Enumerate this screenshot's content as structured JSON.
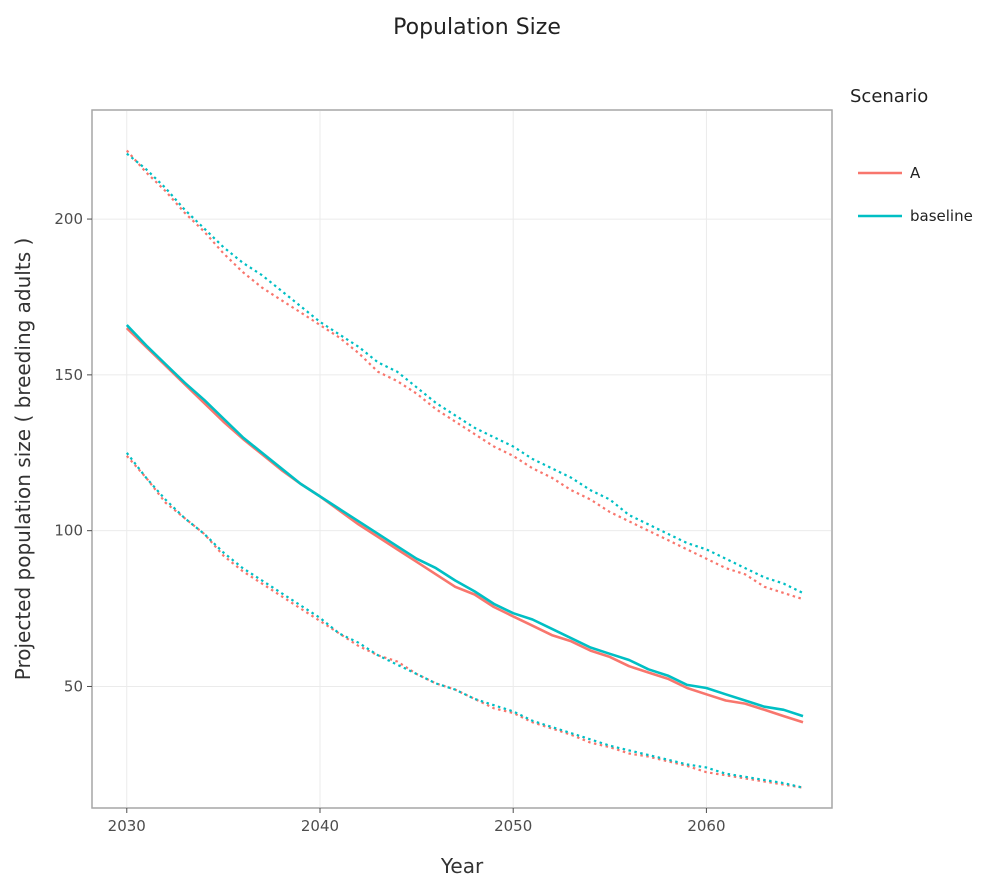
{
  "chart_data": {
    "type": "line",
    "title": "Population Size",
    "xlabel": "Year",
    "ylabel": "Projected population size ( breeding adults )",
    "xlim": [
      2028.2,
      2066.5
    ],
    "ylim": [
      11,
      235
    ],
    "x_ticks": [
      2030,
      2040,
      2050,
      2060
    ],
    "y_ticks": [
      50,
      100,
      150,
      200
    ],
    "grid": true,
    "legend": {
      "title": "Scenario",
      "placement": "right",
      "entries": [
        "A",
        "baseline"
      ]
    },
    "colors": {
      "A": "#f8766d",
      "baseline": "#00bfc4"
    },
    "x": [
      2030,
      2031,
      2032,
      2033,
      2034,
      2035,
      2036,
      2037,
      2038,
      2039,
      2040,
      2041,
      2042,
      2043,
      2044,
      2045,
      2046,
      2047,
      2048,
      2049,
      2050,
      2051,
      2052,
      2053,
      2054,
      2055,
      2056,
      2057,
      2058,
      2059,
      2060,
      2061,
      2062,
      2063,
      2064,
      2065
    ],
    "series": [
      {
        "name": "A",
        "style": "solid",
        "color": "#f8766d",
        "values": [
          165,
          159,
          153,
          147,
          141,
          135,
          129.5,
          124.5,
          119.5,
          115,
          111,
          106.5,
          102,
          98,
          94,
          90,
          86,
          82,
          79.5,
          75.5,
          72.5,
          69.5,
          66.5,
          64.5,
          61.5,
          59.5,
          56.5,
          54.5,
          52.5,
          49.5,
          47.5,
          45.5,
          44.5,
          42.5,
          40.5,
          38.5
        ]
      },
      {
        "name": "A",
        "style": "dotted",
        "color": "#f8766d",
        "values": [
          222,
          215,
          209,
          202,
          196,
          189,
          183,
          178,
          174,
          170,
          166,
          162,
          157,
          151,
          148,
          144,
          139,
          135,
          131,
          127,
          124,
          120,
          117,
          113,
          110,
          106,
          103,
          100,
          97,
          94,
          91,
          88,
          86,
          82,
          80,
          78
        ]
      },
      {
        "name": "A",
        "style": "dotted",
        "color": "#f8766d",
        "values": [
          124,
          117,
          109,
          104,
          99,
          92,
          87,
          83,
          79,
          75,
          71,
          67,
          63,
          60,
          58,
          54,
          51,
          49,
          46,
          43,
          41.5,
          38.5,
          36.5,
          34.5,
          32,
          30.5,
          28.5,
          27.5,
          26,
          24.5,
          22.5,
          21.5,
          20.5,
          19.5,
          18.5,
          17.5
        ]
      },
      {
        "name": "baseline",
        "style": "solid",
        "color": "#00bfc4",
        "values": [
          166,
          159.5,
          153.5,
          147.5,
          142,
          136,
          130,
          125,
          120,
          115,
          111,
          107,
          103,
          99,
          95,
          91,
          88,
          84,
          80.5,
          76.5,
          73.5,
          71.5,
          68.5,
          65.5,
          62.5,
          60.5,
          58.5,
          55.5,
          53.5,
          50.5,
          49.5,
          47.5,
          45.5,
          43.5,
          42.5,
          40.5
        ]
      },
      {
        "name": "baseline",
        "style": "dotted",
        "color": "#00bfc4",
        "values": [
          221,
          216,
          210,
          203,
          197,
          191,
          186,
          182,
          177,
          172,
          167,
          163,
          159,
          154,
          151,
          146,
          141,
          137,
          133,
          130,
          127,
          123,
          120,
          117,
          113,
          110,
          105,
          102,
          99,
          96,
          94,
          91,
          88,
          85,
          83,
          80
        ]
      },
      {
        "name": "baseline",
        "style": "dotted",
        "color": "#00bfc4",
        "values": [
          125,
          117,
          110,
          104,
          99,
          93,
          88,
          84,
          80,
          76,
          72,
          67,
          64,
          60,
          57,
          54,
          51,
          49,
          46,
          44,
          42,
          39,
          37,
          35,
          33,
          31,
          29.5,
          28,
          26.5,
          25,
          24,
          22,
          21,
          20,
          19,
          17.5
        ]
      }
    ]
  }
}
